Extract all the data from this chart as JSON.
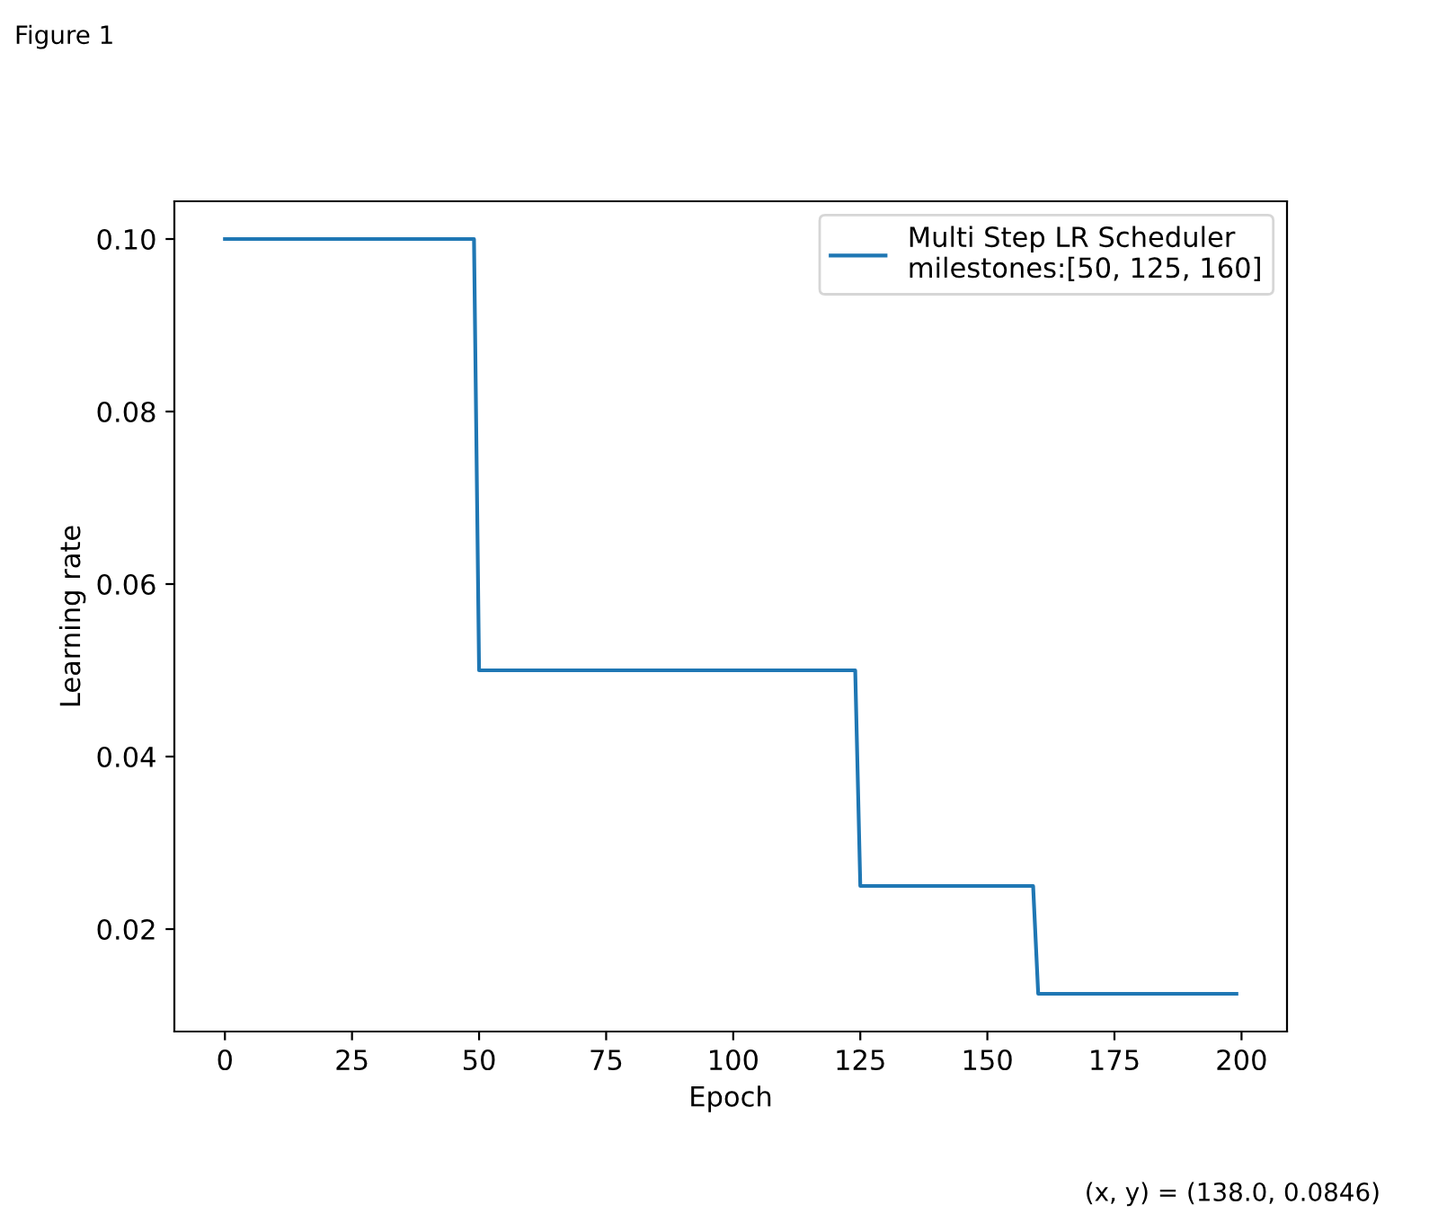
{
  "chart_data": {
    "type": "line",
    "xlabel": "Epoch",
    "ylabel": "Learning rate",
    "series": [
      {
        "name": "Multi Step LR Scheduler\nmilestones:[50, 125, 160]",
        "color": "#1f77b4",
        "x": [
          0,
          49,
          50,
          124,
          125,
          159,
          160,
          199
        ],
        "values": [
          0.1,
          0.1,
          0.05,
          0.05,
          0.025,
          0.025,
          0.0125,
          0.0125
        ]
      }
    ],
    "xlim": [
      -9.95,
      208.95
    ],
    "ylim": [
      0.008125,
      0.104375
    ],
    "xticks": [
      0,
      25,
      50,
      75,
      100,
      125,
      150,
      175,
      200
    ],
    "yticks": [
      0.02,
      0.04,
      0.06,
      0.08,
      {
        "value": 0.1,
        "label": "0.10"
      }
    ],
    "legend": "top right",
    "grid": false,
    "marker": "none",
    "line_style": "solid",
    "annotations": [
      "Figure 1",
      "(x, y) = (138.0, 0.0846)"
    ]
  }
}
